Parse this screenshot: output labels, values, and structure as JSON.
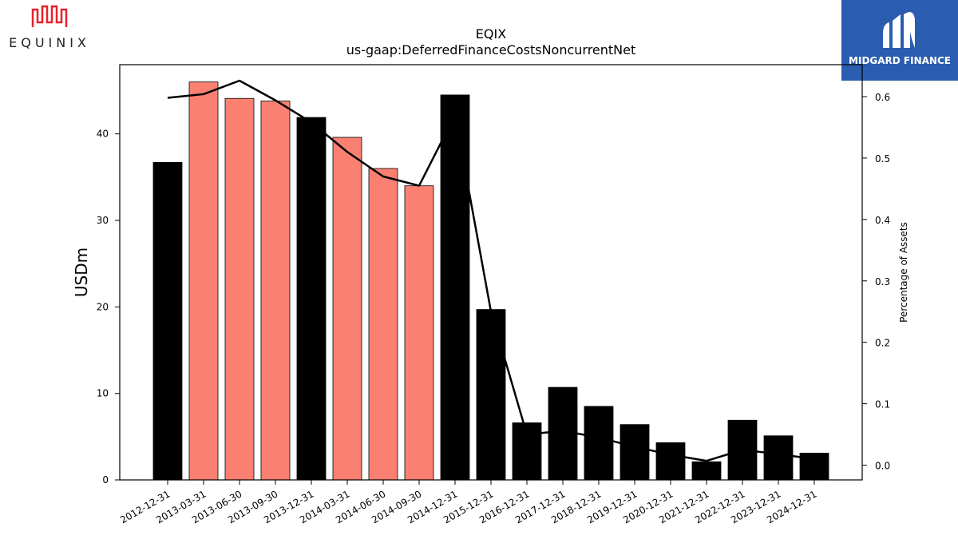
{
  "logos": {
    "left": {
      "text": "EQUINIX",
      "color": "#e8202a"
    },
    "right": {
      "text": "MIDGARD FINANCE",
      "background": "#2a5db0"
    }
  },
  "chart_data": {
    "type": "bar",
    "title": "EQIX",
    "subtitle": "us-gaap:DeferredFinanceCostsNoncurrentNet",
    "ylabel": "USDm",
    "y2label": "Percentage of Assets",
    "ylim": [
      0,
      48
    ],
    "y2lim": [
      -0.024,
      0.652
    ],
    "yticks": [
      0,
      10,
      20,
      30,
      40
    ],
    "y2ticks": [
      0.0,
      0.1,
      0.2,
      0.3,
      0.4,
      0.5,
      0.6
    ],
    "categories": [
      "2012-12-31",
      "2013-03-31",
      "2013-06-30",
      "2013-09-30",
      "2013-12-31",
      "2014-03-31",
      "2014-06-30",
      "2014-09-30",
      "2014-12-31",
      "2015-12-31",
      "2016-12-31",
      "2017-12-31",
      "2018-12-31",
      "2019-12-31",
      "2020-12-31",
      "2021-12-31",
      "2022-12-31",
      "2023-12-31",
      "2024-12-31"
    ],
    "series": [
      {
        "type": "bar",
        "values": [
          36.7,
          46.0,
          44.1,
          43.8,
          41.9,
          39.6,
          36.0,
          34.0,
          44.5,
          19.7,
          6.6,
          10.7,
          8.5,
          6.4,
          4.3,
          2.1,
          6.9,
          5.1,
          3.1
        ],
        "colors": [
          "#000000",
          "#fa8072",
          "#fa8072",
          "#fa8072",
          "#000000",
          "#fa8072",
          "#fa8072",
          "#fa8072",
          "#000000",
          "#000000",
          "#000000",
          "#000000",
          "#000000",
          "#000000",
          "#000000",
          "#000000",
          "#000000",
          "#000000",
          "#000000"
        ]
      },
      {
        "type": "line",
        "axis": "right",
        "color": "#000000",
        "values": [
          0.598,
          0.604,
          0.626,
          0.594,
          0.558,
          0.51,
          0.47,
          0.455,
          0.57,
          0.25,
          0.05,
          0.056,
          0.045,
          0.03,
          0.017,
          0.007,
          0.025,
          0.018,
          0.01
        ]
      }
    ],
    "grid": false
  }
}
